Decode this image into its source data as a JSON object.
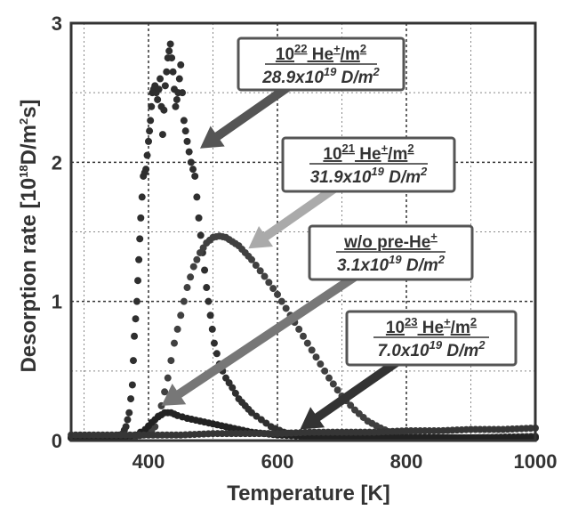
{
  "chart_data": {
    "type": "scatter",
    "xlabel": "Temperature [K]",
    "ylabel": "Desorption rate [10",
    "ylabel_sup1": "18",
    "ylabel_mid": "D/m",
    "ylabel_sup2": "2",
    "ylabel_end": "s]",
    "xlim": [
      280,
      1000
    ],
    "ylim": [
      0,
      3
    ],
    "x_ticks": [
      "400",
      "600",
      "800",
      "1000"
    ],
    "x_tick_values": [
      400,
      600,
      800,
      1000
    ],
    "y_ticks": [
      "0",
      "1",
      "2",
      "3"
    ],
    "y_tick_values": [
      0,
      1,
      2,
      3
    ],
    "grid": true,
    "series": [
      {
        "key": "1e22",
        "color": "#2f2f2f",
        "points": [
          [
            280,
            0.02
          ],
          [
            330,
            0.02
          ],
          [
            350,
            0.03
          ],
          [
            360,
            0.05
          ],
          [
            365,
            0.1
          ],
          [
            370,
            0.2
          ],
          [
            375,
            0.4
          ],
          [
            378,
            0.75
          ],
          [
            382,
            1.0
          ],
          [
            385,
            1.3
          ],
          [
            388,
            1.6
          ],
          [
            392,
            1.9
          ],
          [
            396,
            1.95
          ],
          [
            400,
            2.15
          ],
          [
            403,
            2.3
          ],
          [
            406,
            2.5
          ],
          [
            410,
            2.55
          ],
          [
            414,
            2.45
          ],
          [
            418,
            2.6
          ],
          [
            422,
            2.2
          ],
          [
            426,
            2.55
          ],
          [
            430,
            2.75
          ],
          [
            434,
            2.85
          ],
          [
            438,
            2.65
          ],
          [
            442,
            2.4
          ],
          [
            446,
            2.5
          ],
          [
            450,
            2.7
          ],
          [
            455,
            2.3
          ],
          [
            460,
            2.15
          ],
          [
            466,
            2.0
          ],
          [
            472,
            1.9
          ],
          [
            478,
            1.6
          ],
          [
            484,
            1.35
          ],
          [
            490,
            1.1
          ],
          [
            496,
            0.9
          ],
          [
            502,
            0.7
          ],
          [
            510,
            0.55
          ],
          [
            520,
            0.45
          ],
          [
            530,
            0.38
          ],
          [
            540,
            0.3
          ],
          [
            550,
            0.25
          ],
          [
            560,
            0.2
          ],
          [
            575,
            0.15
          ],
          [
            590,
            0.1
          ],
          [
            610,
            0.06
          ],
          [
            640,
            0.03
          ],
          [
            700,
            0.02
          ],
          [
            800,
            0.02
          ],
          [
            900,
            0.02
          ],
          [
            1000,
            0.03
          ]
        ]
      },
      {
        "key": "1e21",
        "color": "#404040",
        "points": [
          [
            280,
            0.02
          ],
          [
            350,
            0.02
          ],
          [
            380,
            0.03
          ],
          [
            400,
            0.05
          ],
          [
            410,
            0.1
          ],
          [
            420,
            0.25
          ],
          [
            430,
            0.45
          ],
          [
            440,
            0.7
          ],
          [
            450,
            0.9
          ],
          [
            460,
            1.1
          ],
          [
            470,
            1.25
          ],
          [
            480,
            1.35
          ],
          [
            490,
            1.42
          ],
          [
            500,
            1.46
          ],
          [
            510,
            1.47
          ],
          [
            520,
            1.46
          ],
          [
            530,
            1.43
          ],
          [
            540,
            1.4
          ],
          [
            550,
            1.35
          ],
          [
            560,
            1.3
          ],
          [
            580,
            1.18
          ],
          [
            600,
            1.05
          ],
          [
            620,
            0.9
          ],
          [
            640,
            0.75
          ],
          [
            660,
            0.6
          ],
          [
            680,
            0.45
          ],
          [
            700,
            0.32
          ],
          [
            720,
            0.22
          ],
          [
            740,
            0.14
          ],
          [
            760,
            0.09
          ],
          [
            780,
            0.05
          ],
          [
            800,
            0.03
          ],
          [
            850,
            0.02
          ],
          [
            900,
            0.02
          ],
          [
            1000,
            0.02
          ]
        ]
      },
      {
        "key": "wo",
        "color": "#222222",
        "points": [
          [
            280,
            0.02
          ],
          [
            350,
            0.02
          ],
          [
            380,
            0.04
          ],
          [
            395,
            0.08
          ],
          [
            405,
            0.13
          ],
          [
            415,
            0.17
          ],
          [
            425,
            0.2
          ],
          [
            435,
            0.2
          ],
          [
            445,
            0.18
          ],
          [
            460,
            0.16
          ],
          [
            480,
            0.14
          ],
          [
            500,
            0.12
          ],
          [
            520,
            0.1
          ],
          [
            540,
            0.08
          ],
          [
            560,
            0.06
          ],
          [
            580,
            0.05
          ],
          [
            600,
            0.04
          ],
          [
            650,
            0.03
          ],
          [
            700,
            0.02
          ],
          [
            800,
            0.02
          ],
          [
            1000,
            0.02
          ]
        ]
      },
      {
        "key": "1e23",
        "color": "#363636",
        "points": [
          [
            280,
            0.04
          ],
          [
            350,
            0.04
          ],
          [
            400,
            0.04
          ],
          [
            450,
            0.04
          ],
          [
            500,
            0.05
          ],
          [
            550,
            0.05
          ],
          [
            600,
            0.05
          ],
          [
            650,
            0.06
          ],
          [
            700,
            0.06
          ],
          [
            750,
            0.06
          ],
          [
            800,
            0.07
          ],
          [
            850,
            0.07
          ],
          [
            900,
            0.08
          ],
          [
            950,
            0.08
          ],
          [
            1000,
            0.09
          ]
        ]
      }
    ],
    "annotations": [
      {
        "key": "1e22",
        "line1_base": "10",
        "line1_sup": "22",
        "line1_unit": " He",
        "line1_unit_sup": "+",
        "line1_end": "/m",
        "line1_end_sup": "2",
        "line2_base": "28.9x10",
        "line2_sup": "19",
        "line2_unit": " D/m",
        "line2_unit_sup": "2",
        "arrow_color": "#555555",
        "arrow_target": [
          480,
          2.1
        ]
      },
      {
        "key": "1e21",
        "line1_base": "10",
        "line1_sup": "21",
        "line1_unit": " He",
        "line1_unit_sup": "+",
        "line1_end": "/m",
        "line1_end_sup": "2",
        "line2_base": "31.9x10",
        "line2_sup": "19",
        "line2_unit": " D/m",
        "line2_unit_sup": "2",
        "arrow_color": "#aaaaaa",
        "arrow_target": [
          555,
          1.38
        ]
      },
      {
        "key": "wo",
        "line1_text": "w/o pre-He",
        "line1_text_sup": "+",
        "line2_base": "3.1x10",
        "line2_sup": "19",
        "line2_unit": " D/m",
        "line2_unit_sup": "2",
        "arrow_color": "#777777",
        "arrow_target": [
          420,
          0.25
        ]
      },
      {
        "key": "1e23",
        "line1_base": "10",
        "line1_sup": "23",
        "line1_unit": " He",
        "line1_unit_sup": "+",
        "line1_end": "/m",
        "line1_end_sup": "2",
        "line2_base": "7.0x10",
        "line2_sup": "19",
        "line2_unit": " D/m",
        "line2_unit_sup": "2",
        "arrow_color": "#333333",
        "arrow_target": [
          635,
          0.08
        ]
      }
    ]
  }
}
